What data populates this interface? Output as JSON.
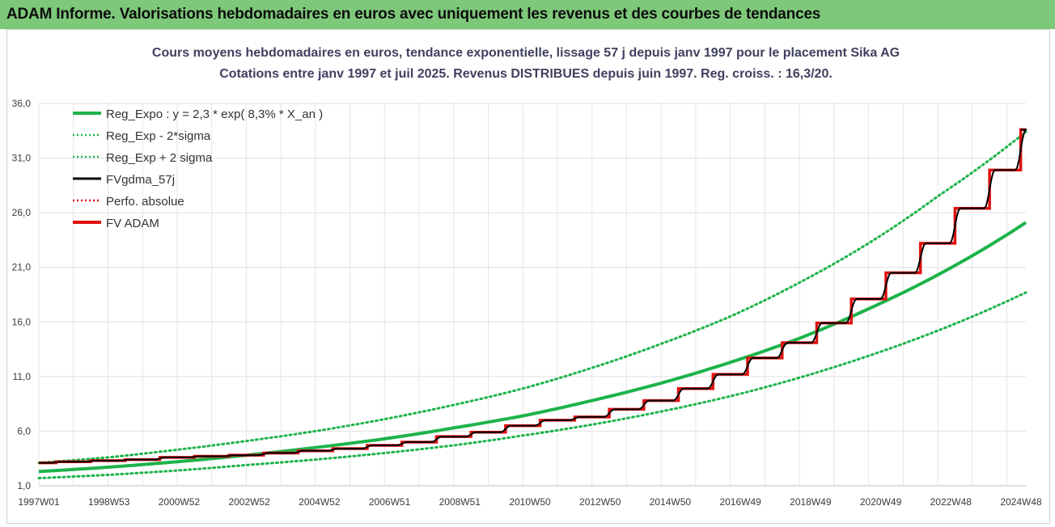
{
  "banner": {
    "title": "ADAM Informe. Valorisations hebdomadaires en euros avec uniquement les revenus et des courbes de tendances"
  },
  "chart_data": {
    "type": "line",
    "title": "Cours moyens hebdomadaires en euros, tendance exponentielle, lissage 57 j depuis janv 1997 pour le placement Sika AG",
    "subtitle": "Cotations entre janv 1997 et juil 2025. Revenus DISTRIBUES depuis juin 1997. Reg. croiss. : 16,3/20.",
    "xlabel": "",
    "ylabel": "",
    "x_ticks": [
      "1997W01",
      "1998W53",
      "2000W52",
      "2002W52",
      "2004W52",
      "2006W51",
      "2008W51",
      "2010W50",
      "2012W50",
      "2014W50",
      "2016W49",
      "2018W49",
      "2020W49",
      "2022W48",
      "2024W48"
    ],
    "x_range": [
      1997.0,
      2025.55
    ],
    "y_ticks": [
      "1,0",
      "6,0",
      "11,0",
      "16,0",
      "21,0",
      "26,0",
      "31,0",
      "36,0"
    ],
    "ylim": [
      1.0,
      36.0
    ],
    "grid": true,
    "legend_position": "top-left",
    "series": [
      {
        "name": "Reg_Expo : y = 2,3 * exp( 8,3% *  X_an )",
        "color": "#1db34a",
        "style": "solid",
        "x": [
          1997,
          1999,
          2001,
          2003,
          2005,
          2007,
          2009,
          2011,
          2013,
          2015,
          2017,
          2019,
          2021,
          2023,
          2025.55
        ],
        "values": [
          2.3,
          2.7,
          3.2,
          3.8,
          4.5,
          5.3,
          6.3,
          7.4,
          8.8,
          10.4,
          12.3,
          14.5,
          17.2,
          20.3,
          25.1
        ]
      },
      {
        "name": "Reg_Exp - 2*sigma",
        "color": "#1db34a",
        "style": "dotted",
        "x": [
          1997,
          1999,
          2001,
          2003,
          2005,
          2007,
          2009,
          2011,
          2013,
          2015,
          2017,
          2019,
          2021,
          2023,
          2025.55
        ],
        "values": [
          1.7,
          2.0,
          2.4,
          2.9,
          3.4,
          4.0,
          4.7,
          5.6,
          6.6,
          7.8,
          9.2,
          10.9,
          12.9,
          15.2,
          18.7
        ]
      },
      {
        "name": "Reg_Exp + 2 sigma",
        "color": "#1db34a",
        "style": "dotted",
        "x": [
          1997,
          1999,
          2001,
          2003,
          2005,
          2007,
          2009,
          2011,
          2013,
          2015,
          2017,
          2019,
          2021,
          2023,
          2025.55
        ],
        "values": [
          3.1,
          3.6,
          4.3,
          5.1,
          6.0,
          7.1,
          8.4,
          9.9,
          11.8,
          14.0,
          16.5,
          19.6,
          23.2,
          27.5,
          33.4
        ]
      },
      {
        "name": "FVgdma_57j",
        "color": "#000000",
        "style": "smooth"
      },
      {
        "name": "Perfo. absolue",
        "color": "#e01010",
        "style": "dotted"
      },
      {
        "name": "FV ADAM",
        "color": "#e01010",
        "style": "step",
        "steps": [
          {
            "x": 1997.0,
            "y": 3.1
          },
          {
            "x": 1997.5,
            "y": 3.2
          },
          {
            "x": 1998.5,
            "y": 3.3
          },
          {
            "x": 1999.5,
            "y": 3.4
          },
          {
            "x": 2000.5,
            "y": 3.6
          },
          {
            "x": 2001.5,
            "y": 3.7
          },
          {
            "x": 2002.5,
            "y": 3.8
          },
          {
            "x": 2003.5,
            "y": 4.0
          },
          {
            "x": 2004.5,
            "y": 4.2
          },
          {
            "x": 2005.5,
            "y": 4.4
          },
          {
            "x": 2006.5,
            "y": 4.7
          },
          {
            "x": 2007.5,
            "y": 5.0
          },
          {
            "x": 2008.5,
            "y": 5.5
          },
          {
            "x": 2009.5,
            "y": 5.9
          },
          {
            "x": 2010.5,
            "y": 6.5
          },
          {
            "x": 2011.5,
            "y": 7.0
          },
          {
            "x": 2012.5,
            "y": 7.3
          },
          {
            "x": 2013.5,
            "y": 8.0
          },
          {
            "x": 2014.5,
            "y": 8.8
          },
          {
            "x": 2015.5,
            "y": 9.9
          },
          {
            "x": 2016.5,
            "y": 11.2
          },
          {
            "x": 2017.5,
            "y": 12.7
          },
          {
            "x": 2018.5,
            "y": 14.1
          },
          {
            "x": 2019.5,
            "y": 15.9
          },
          {
            "x": 2020.5,
            "y": 18.1
          },
          {
            "x": 2021.5,
            "y": 20.5
          },
          {
            "x": 2022.5,
            "y": 23.2
          },
          {
            "x": 2023.5,
            "y": 26.4
          },
          {
            "x": 2024.5,
            "y": 29.9
          },
          {
            "x": 2025.4,
            "y": 33.6
          }
        ]
      }
    ]
  }
}
